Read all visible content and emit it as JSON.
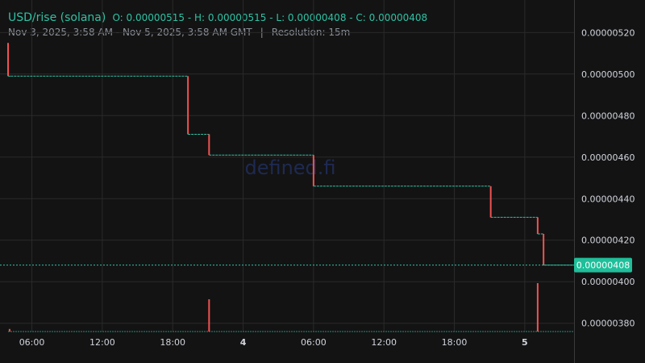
{
  "header": {
    "symbol": "USD/rise (solana)",
    "ohlc_text": "O: 0.00000515 - H: 0.00000515 - L: 0.00000408 - C: 0.00000408",
    "date_range": "Nov 3, 2025, 3:58 AM - Nov 5, 2025, 3:58 AM GMT",
    "separator": "|",
    "resolution": "Resolution: 15m"
  },
  "watermark": "defined.fi",
  "colors": {
    "background": "#131313",
    "grid": "#2a2a2a",
    "up": "#2fc2a4",
    "down": "#ef5350",
    "text": "#d1d4dc"
  },
  "chart_data": {
    "type": "line",
    "style": "candlestick-step",
    "title": "USD/rise (solana)",
    "xlabel": "",
    "ylabel": "",
    "x_ticks": [
      "06:00",
      "12:00",
      "18:00",
      "4",
      "06:00",
      "12:00",
      "18:00",
      "5"
    ],
    "x_tick_hours": [
      6,
      12,
      18,
      24,
      30,
      36,
      42,
      48
    ],
    "bold_ticks": [
      "4",
      "5"
    ],
    "x_range_hours": [
      3.97,
      52.2
    ],
    "y_ticks": [
      "0.00000380",
      "0.00000400",
      "0.00000420",
      "0.00000440",
      "0.00000460",
      "0.00000480",
      "0.00000500",
      "0.00000520"
    ],
    "ylim": [
      3.76e-06,
      5.31e-06
    ],
    "grid": true,
    "last_price": 4.08e-06,
    "last_price_label": "0.00000408",
    "price_segments": [
      {
        "t0": 3.97,
        "t1": 4.2,
        "o": 5.15e-06,
        "c": 4.99e-06,
        "dir": "down"
      },
      {
        "t0": 4.2,
        "t1": 19.3,
        "o": 4.99e-06,
        "c": 4.99e-06,
        "dir": "flat"
      },
      {
        "t0": 19.3,
        "t1": 21.1,
        "o": 4.99e-06,
        "c": 4.71e-06,
        "dir": "down"
      },
      {
        "t0": 21.1,
        "t1": 30.0,
        "o": 4.71e-06,
        "c": 4.61e-06,
        "dir": "down"
      },
      {
        "t0": 30.0,
        "t1": 45.1,
        "o": 4.61e-06,
        "c": 4.46e-06,
        "dir": "down"
      },
      {
        "t0": 45.1,
        "t1": 49.1,
        "o": 4.46e-06,
        "c": 4.31e-06,
        "dir": "down"
      },
      {
        "t0": 49.1,
        "t1": 49.6,
        "o": 4.31e-06,
        "c": 4.23e-06,
        "dir": "down"
      },
      {
        "t0": 49.6,
        "t1": 52.2,
        "o": 4.23e-06,
        "c": 4.08e-06,
        "dir": "down"
      }
    ],
    "volume_spikes": [
      {
        "t": 4.1,
        "v": 0.08
      },
      {
        "t": 21.1,
        "v": 1.0
      },
      {
        "t": 49.1,
        "v": 1.5
      }
    ]
  }
}
